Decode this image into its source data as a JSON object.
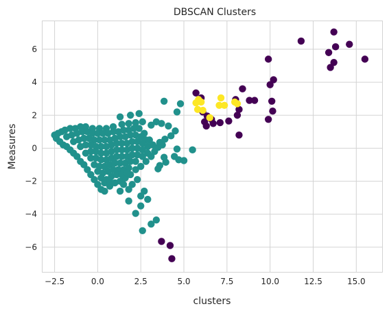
{
  "chart_data": {
    "type": "scatter",
    "title": "DBSCAN Clusters",
    "xlabel": "clusters",
    "ylabel": "Measures",
    "xlim": [
      -3.2,
      16.5
    ],
    "ylim": [
      -7.5,
      7.7
    ],
    "xticks": [
      -2.5,
      0.0,
      2.5,
      5.0,
      7.5,
      10.0,
      12.5,
      15.0
    ],
    "xtick_labels": [
      "−2.5",
      "0.0",
      "2.5",
      "5.0",
      "7.5",
      "10.0",
      "12.5",
      "15.0"
    ],
    "yticks": [
      -6,
      -4,
      -2,
      0,
      2,
      4,
      6
    ],
    "ytick_labels": [
      "−6",
      "−4",
      "−2",
      "0",
      "2",
      "4",
      "6"
    ],
    "grid": true,
    "legend": "none",
    "colors": {
      "noise": "#440154",
      "cluster_0": "#21918c",
      "cluster_1": "#fde725"
    },
    "series": [
      {
        "color": "#440154",
        "points": [
          [
            13.7,
            7.05
          ],
          [
            11.8,
            6.5
          ],
          [
            14.6,
            6.3
          ],
          [
            13.8,
            6.15
          ],
          [
            13.4,
            5.8
          ],
          [
            15.5,
            5.4
          ],
          [
            9.9,
            5.4
          ],
          [
            13.7,
            5.2
          ],
          [
            13.5,
            4.9
          ],
          [
            10.2,
            4.15
          ],
          [
            10.0,
            3.85
          ],
          [
            8.4,
            3.6
          ],
          [
            5.7,
            3.35
          ],
          [
            6.0,
            3.05
          ],
          [
            8.0,
            2.95
          ],
          [
            8.8,
            2.9
          ],
          [
            9.1,
            2.9
          ],
          [
            10.1,
            2.85
          ],
          [
            6.1,
            2.2
          ],
          [
            10.15,
            2.25
          ],
          [
            6.35,
            1.95
          ],
          [
            6.6,
            1.75
          ],
          [
            8.1,
            2.0
          ],
          [
            8.2,
            2.35
          ],
          [
            6.2,
            1.6
          ],
          [
            7.1,
            1.55
          ],
          [
            7.6,
            1.65
          ],
          [
            9.9,
            1.75
          ],
          [
            6.3,
            1.35
          ],
          [
            6.7,
            1.5
          ],
          [
            8.2,
            0.8
          ],
          [
            3.7,
            -5.65
          ],
          [
            4.2,
            -5.9
          ],
          [
            4.3,
            -6.7
          ]
        ]
      },
      {
        "color": "#fde725",
        "points": [
          [
            5.85,
            2.95
          ],
          [
            5.7,
            2.75
          ],
          [
            6.0,
            2.8
          ],
          [
            5.8,
            2.35
          ],
          [
            6.1,
            2.3
          ],
          [
            7.15,
            3.05
          ],
          [
            7.05,
            2.6
          ],
          [
            7.35,
            2.6
          ],
          [
            7.95,
            2.8
          ],
          [
            8.1,
            2.7
          ],
          [
            6.5,
            1.85
          ]
        ]
      },
      {
        "color": "#21918c",
        "points": [
          [
            3.85,
            2.85
          ],
          [
            4.8,
            2.7
          ],
          [
            4.6,
            2.2
          ],
          [
            2.4,
            2.1
          ],
          [
            1.3,
            1.9
          ],
          [
            1.9,
            2.0
          ],
          [
            3.4,
            1.6
          ],
          [
            3.1,
            1.4
          ],
          [
            3.7,
            1.5
          ],
          [
            4.1,
            1.35
          ],
          [
            4.5,
            1.05
          ],
          [
            4.25,
            0.75
          ],
          [
            3.9,
            0.55
          ],
          [
            3.6,
            0.35
          ],
          [
            3.75,
            0.2
          ],
          [
            3.5,
            0.05
          ],
          [
            4.6,
            -0.05
          ],
          [
            5.5,
            -0.1
          ],
          [
            4.45,
            -0.5
          ],
          [
            4.7,
            -0.7
          ],
          [
            5.0,
            -0.75
          ],
          [
            3.85,
            -0.55
          ],
          [
            3.95,
            -0.85
          ],
          [
            3.6,
            -1.05
          ],
          [
            3.5,
            -1.25
          ],
          [
            2.7,
            -2.6
          ],
          [
            2.5,
            -2.9
          ],
          [
            1.8,
            -3.2
          ],
          [
            2.9,
            -3.1
          ],
          [
            2.5,
            -3.5
          ],
          [
            2.2,
            -3.95
          ],
          [
            3.4,
            -4.35
          ],
          [
            3.1,
            -4.6
          ],
          [
            2.6,
            -5.0
          ],
          [
            -2.5,
            0.8
          ],
          [
            -2.3,
            0.9
          ],
          [
            -2.1,
            1.0
          ],
          [
            -1.9,
            1.1
          ],
          [
            -1.6,
            1.2
          ],
          [
            -1.3,
            1.2
          ],
          [
            -1.0,
            1.3
          ],
          [
            -0.7,
            1.3
          ],
          [
            -0.3,
            1.2
          ],
          [
            0.1,
            1.2
          ],
          [
            0.5,
            1.2
          ],
          [
            0.9,
            1.3
          ],
          [
            1.4,
            1.45
          ],
          [
            1.8,
            1.5
          ],
          [
            2.2,
            1.55
          ],
          [
            2.6,
            1.6
          ],
          [
            -2.4,
            0.6
          ],
          [
            -2.2,
            0.4
          ],
          [
            -2.0,
            0.2
          ],
          [
            -1.8,
            0.1
          ],
          [
            -1.6,
            -0.1
          ],
          [
            -1.4,
            -0.3
          ],
          [
            -1.2,
            -0.5
          ],
          [
            -1.0,
            -0.8
          ],
          [
            -0.8,
            -1.0
          ],
          [
            -0.6,
            -1.3
          ],
          [
            -0.4,
            -1.6
          ],
          [
            -0.2,
            -1.9
          ],
          [
            0.0,
            -2.2
          ],
          [
            0.2,
            -2.5
          ],
          [
            0.4,
            -2.6
          ],
          [
            0.7,
            -2.3
          ],
          [
            1.0,
            -2.1
          ],
          [
            1.3,
            -2.0
          ],
          [
            1.6,
            -1.8
          ],
          [
            1.9,
            -1.6
          ],
          [
            2.2,
            -1.3
          ],
          [
            2.5,
            -1.1
          ],
          [
            2.8,
            -0.8
          ],
          [
            3.1,
            -0.5
          ],
          [
            3.3,
            -0.2
          ],
          [
            3.2,
            0.2
          ],
          [
            3.0,
            0.5
          ],
          [
            2.7,
            0.9
          ],
          [
            2.4,
            1.2
          ],
          [
            -1.8,
            0.7
          ],
          [
            -1.5,
            0.8
          ],
          [
            -1.2,
            0.9
          ],
          [
            -0.9,
            1.0
          ],
          [
            -0.6,
            1.0
          ],
          [
            -0.3,
            0.9
          ],
          [
            0.0,
            0.9
          ],
          [
            0.3,
            0.9
          ],
          [
            0.6,
            0.9
          ],
          [
            0.9,
            1.0
          ],
          [
            1.2,
            1.0
          ],
          [
            1.5,
            1.1
          ],
          [
            1.8,
            1.1
          ],
          [
            2.1,
            1.2
          ],
          [
            -1.4,
            0.4
          ],
          [
            -1.1,
            0.5
          ],
          [
            -0.8,
            0.6
          ],
          [
            -0.5,
            0.6
          ],
          [
            -0.2,
            0.5
          ],
          [
            0.1,
            0.5
          ],
          [
            0.4,
            0.5
          ],
          [
            0.7,
            0.5
          ],
          [
            1.0,
            0.6
          ],
          [
            1.3,
            0.7
          ],
          [
            1.6,
            0.7
          ],
          [
            1.9,
            0.8
          ],
          [
            2.2,
            0.8
          ],
          [
            2.5,
            0.7
          ],
          [
            2.8,
            0.5
          ],
          [
            -1.0,
            0.1
          ],
          [
            -0.7,
            0.2
          ],
          [
            -0.4,
            0.2
          ],
          [
            -0.1,
            0.1
          ],
          [
            0.2,
            0.1
          ],
          [
            0.5,
            0.1
          ],
          [
            0.8,
            0.2
          ],
          [
            1.1,
            0.3
          ],
          [
            1.4,
            0.3
          ],
          [
            1.7,
            0.3
          ],
          [
            2.0,
            0.4
          ],
          [
            2.3,
            0.4
          ],
          [
            2.6,
            0.3
          ],
          [
            2.9,
            0.1
          ],
          [
            -0.7,
            -0.3
          ],
          [
            -0.4,
            -0.2
          ],
          [
            -0.1,
            -0.2
          ],
          [
            0.2,
            -0.3
          ],
          [
            0.5,
            -0.3
          ],
          [
            0.8,
            -0.2
          ],
          [
            1.1,
            -0.1
          ],
          [
            1.4,
            -0.1
          ],
          [
            1.7,
            -0.1
          ],
          [
            2.0,
            0.0
          ],
          [
            2.3,
            0.0
          ],
          [
            2.6,
            -0.1
          ],
          [
            2.9,
            -0.3
          ],
          [
            -0.4,
            -0.6
          ],
          [
            -0.1,
            -0.6
          ],
          [
            0.2,
            -0.7
          ],
          [
            0.5,
            -0.7
          ],
          [
            0.8,
            -0.6
          ],
          [
            1.1,
            -0.5
          ],
          [
            1.4,
            -0.5
          ],
          [
            1.7,
            -0.5
          ],
          [
            2.0,
            -0.4
          ],
          [
            2.3,
            -0.4
          ],
          [
            2.6,
            -0.5
          ],
          [
            -0.2,
            -1.0
          ],
          [
            0.1,
            -1.1
          ],
          [
            0.4,
            -1.1
          ],
          [
            0.7,
            -1.0
          ],
          [
            1.0,
            -0.9
          ],
          [
            1.3,
            -0.9
          ],
          [
            1.6,
            -0.9
          ],
          [
            1.9,
            -0.8
          ],
          [
            2.2,
            -0.8
          ],
          [
            0.0,
            -1.4
          ],
          [
            0.3,
            -1.5
          ],
          [
            0.6,
            -1.4
          ],
          [
            0.9,
            -1.3
          ],
          [
            1.2,
            -1.3
          ],
          [
            1.5,
            -1.3
          ],
          [
            1.8,
            -1.2
          ],
          [
            0.2,
            -1.8
          ],
          [
            0.5,
            -1.9
          ],
          [
            0.8,
            -1.7
          ],
          [
            1.1,
            -1.6
          ],
          [
            1.4,
            -1.6
          ],
          [
            1.7,
            -1.5
          ],
          [
            0.4,
            -2.1
          ],
          [
            0.7,
            -2.0
          ],
          [
            1.5,
            -2.2
          ],
          [
            1.8,
            -2.5
          ],
          [
            1.3,
            -2.6
          ],
          [
            2.0,
            -2.2
          ],
          [
            2.3,
            -1.9
          ]
        ]
      }
    ]
  }
}
